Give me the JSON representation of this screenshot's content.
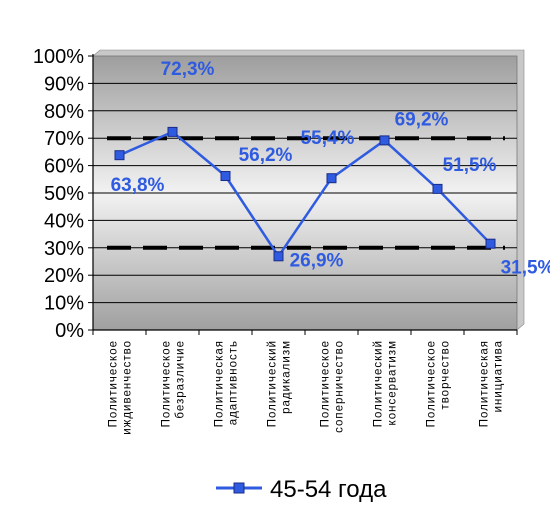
{
  "chart_data": {
    "type": "line",
    "title": "",
    "xlabel": "",
    "ylabel": "",
    "categories": [
      [
        "Политическое",
        "иждивенчество"
      ],
      [
        "Политическое",
        "безразличие"
      ],
      [
        "Политическая",
        "адаптивность"
      ],
      [
        "Политический",
        "радикализм"
      ],
      [
        "Политическое",
        "соперничество"
      ],
      [
        "Политический",
        "консерватизм"
      ],
      [
        "Политическое",
        "творчество"
      ],
      [
        "Политическая",
        "инициатива"
      ]
    ],
    "series": [
      {
        "name": "45-54 года",
        "values": [
          63.8,
          72.3,
          56.2,
          26.9,
          55.4,
          69.2,
          51.5,
          31.5
        ],
        "data_labels": [
          "63,8%",
          "72,3%",
          "56,2%",
          "26,9%",
          "55,4%",
          "69,2%",
          "51,5%",
          "31,5%"
        ],
        "color": "#2f5be0"
      }
    ],
    "ylim": [
      0,
      100
    ],
    "yticks": [
      "0%",
      "10%",
      "20%",
      "30%",
      "40%",
      "50%",
      "60%",
      "70%",
      "80%",
      "90%",
      "100%"
    ],
    "reference_lines": [
      70,
      30
    ],
    "grid": true,
    "legend_position": "bottom",
    "colors": {
      "series": "#2f5be0",
      "reference_line": "#000000"
    }
  }
}
